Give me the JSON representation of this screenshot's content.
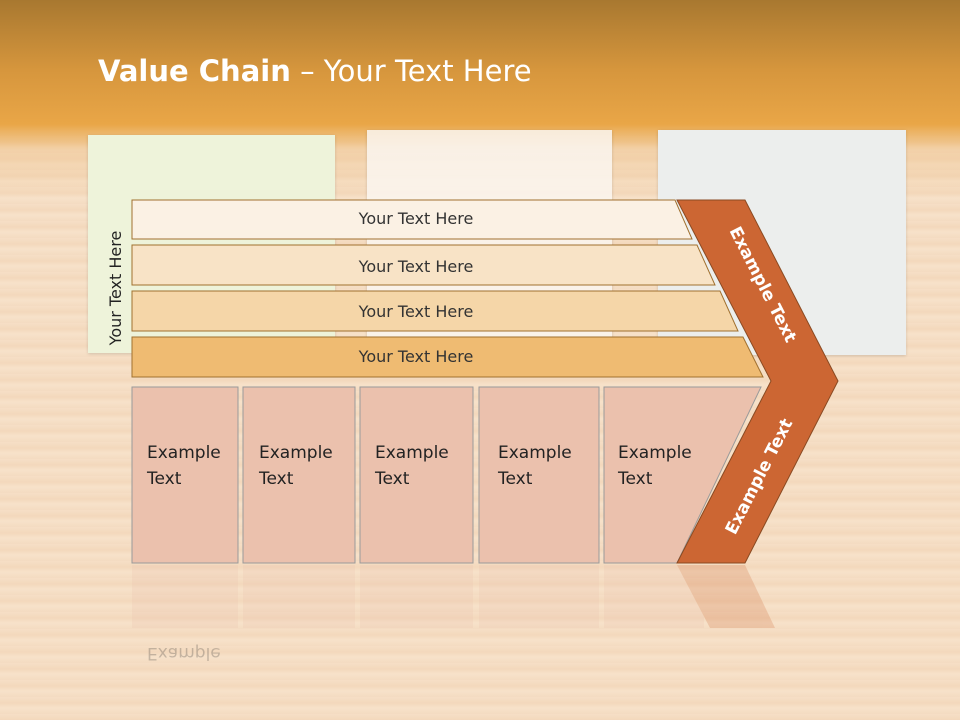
{
  "slide": {
    "title_bold": "Value Chain",
    "title_rest": " – Your Text Here",
    "side_label": "Your Text Here",
    "bars": [
      "Your Text Here",
      "Your Text Here",
      "Your Text Here",
      "Your Text Here"
    ],
    "boxes": [
      {
        "line1": "Example",
        "line2": "Text"
      },
      {
        "line1": "Example",
        "line2": "Text"
      },
      {
        "line1": "Example",
        "line2": "Text"
      },
      {
        "line1": "Example",
        "line2": "Text"
      },
      {
        "line1": "Example",
        "line2": "Text"
      }
    ],
    "chevron_top": "Example Text",
    "chevron_bottom": "Example Text"
  },
  "colors": {
    "bar_fills": [
      "#fbf1e4",
      "#f8e3c6",
      "#f5d6a8",
      "#efbb72"
    ],
    "bar_stroke": "#a0702f",
    "chevron": "#cc6633",
    "box_fill": "#ebc1ad"
  }
}
